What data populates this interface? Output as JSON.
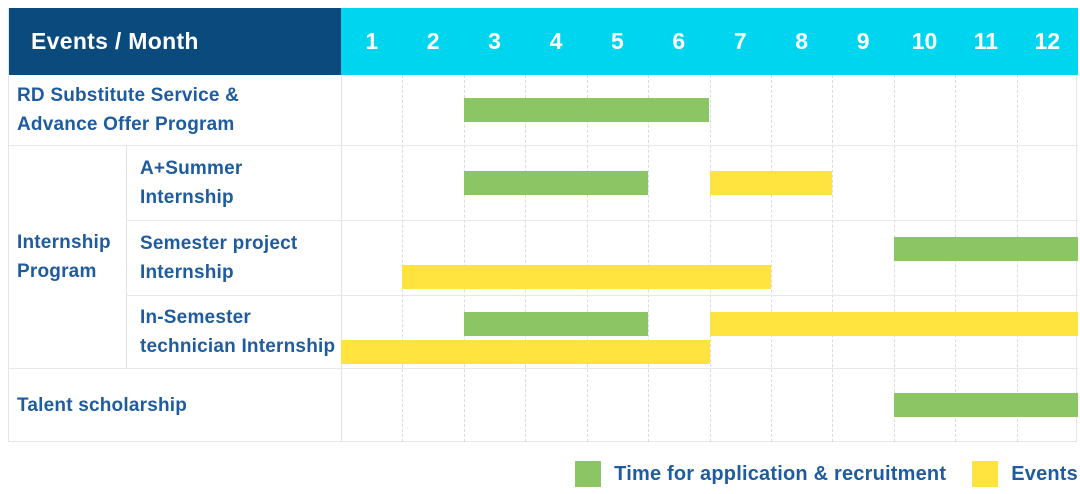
{
  "table": {
    "header": {
      "label": "Events / Month",
      "months": [
        "1",
        "2",
        "3",
        "4",
        "5",
        "6",
        "7",
        "8",
        "9",
        "10",
        "11",
        "12"
      ]
    },
    "group": {
      "label_lines": [
        "Internship",
        "Program"
      ],
      "row_start": 1,
      "row_end": 3
    },
    "rows": [
      {
        "id": "rd-substitute",
        "label_lines": [
          "RD Substitute Service &",
          "Advance Offer Program"
        ],
        "indent": false,
        "bars": [
          {
            "type": "application",
            "start": 3,
            "end": 6,
            "line": "center"
          }
        ]
      },
      {
        "id": "a-plus-summer",
        "label_lines": [
          "A+Summer",
          "Internship"
        ],
        "indent": true,
        "bars": [
          {
            "type": "application",
            "start": 3,
            "end": 5,
            "line": "center"
          },
          {
            "type": "event",
            "start": 7,
            "end": 8,
            "line": "center"
          }
        ]
      },
      {
        "id": "semester-project",
        "label_lines": [
          "Semester project",
          "Internship"
        ],
        "indent": true,
        "bars": [
          {
            "type": "application",
            "start": 10,
            "end": 12,
            "line": "upper"
          },
          {
            "type": "event",
            "start": 2,
            "end": 7,
            "line": "lower"
          }
        ]
      },
      {
        "id": "in-semester-technician",
        "label_lines": [
          "In-Semester",
          "technician Internship"
        ],
        "indent": true,
        "bars": [
          {
            "type": "application",
            "start": 3,
            "end": 5,
            "line": "upper"
          },
          {
            "type": "event",
            "start": 7,
            "end": 12,
            "line": "upper"
          },
          {
            "type": "event",
            "start": 1,
            "end": 6,
            "line": "lower"
          }
        ]
      },
      {
        "id": "talent-scholarship",
        "label_lines": [
          "Talent scholarship"
        ],
        "indent": false,
        "bars": [
          {
            "type": "application",
            "start": 10,
            "end": 12,
            "line": "center"
          }
        ]
      }
    ]
  },
  "legend": {
    "items": [
      {
        "type": "application",
        "label": "Time for application & recruitment"
      },
      {
        "type": "event",
        "label": "Events"
      }
    ]
  },
  "colors": {
    "navy_header": "#0a4a7d",
    "cyan_header": "#00d5ef",
    "label_text": "#1e5c9f",
    "application_green": "#8cc563",
    "event_yellow": "#ffe440"
  },
  "chart_data": {
    "type": "bar",
    "subtype": "gantt",
    "title": "Events / Month",
    "xlabel": "Month",
    "x_ticks": [
      1,
      2,
      3,
      4,
      5,
      6,
      7,
      8,
      9,
      10,
      11,
      12
    ],
    "xlim": [
      1,
      12
    ],
    "grid": true,
    "legend_position": "bottom-right",
    "legend": [
      {
        "name": "Time for application & recruitment",
        "color": "#8cc563"
      },
      {
        "name": "Events",
        "color": "#ffe440"
      }
    ],
    "tasks": [
      {
        "name": "RD Substitute Service & Advance Offer Program",
        "group": null,
        "spans": [
          {
            "category": "Time for application & recruitment",
            "start_month": 3,
            "end_month": 6
          }
        ]
      },
      {
        "name": "A+Summer Internship",
        "group": "Internship Program",
        "spans": [
          {
            "category": "Time for application & recruitment",
            "start_month": 3,
            "end_month": 5
          },
          {
            "category": "Events",
            "start_month": 7,
            "end_month": 8
          }
        ]
      },
      {
        "name": "Semester project Internship",
        "group": "Internship Program",
        "spans": [
          {
            "category": "Time for application & recruitment",
            "start_month": 10,
            "end_month": 12
          },
          {
            "category": "Events",
            "start_month": 2,
            "end_month": 7
          }
        ]
      },
      {
        "name": "In-Semester technician Internship",
        "group": "Internship Program",
        "spans": [
          {
            "category": "Time for application & recruitment",
            "start_month": 3,
            "end_month": 5
          },
          {
            "category": "Events",
            "start_month": 7,
            "end_month": 12
          },
          {
            "category": "Events",
            "start_month": 1,
            "end_month": 6
          }
        ]
      },
      {
        "name": "Talent scholarship",
        "group": null,
        "spans": [
          {
            "category": "Time for application & recruitment",
            "start_month": 10,
            "end_month": 12
          }
        ]
      }
    ]
  }
}
